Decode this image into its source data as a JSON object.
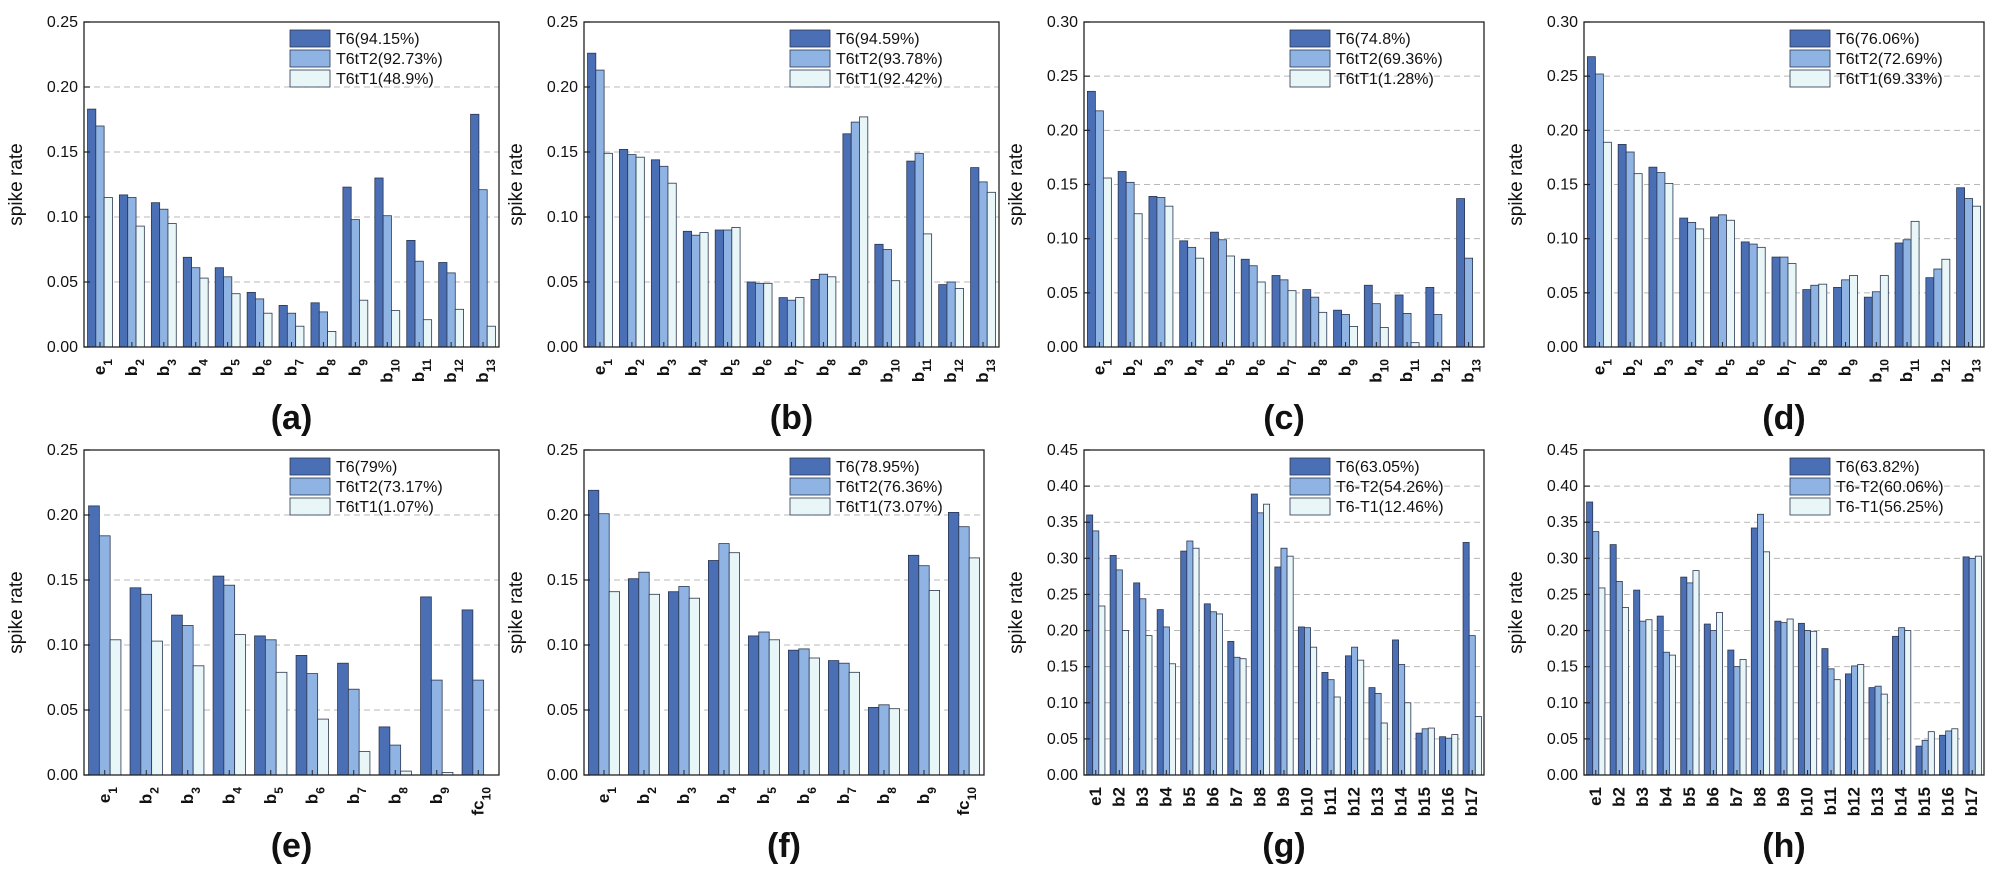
{
  "colors": {
    "T6": "#4a6fb5",
    "T2": "#8fb4e3",
    "T1": "#e8f6f7",
    "edge": "#2b3650",
    "grid": "#b8b8b8"
  },
  "chart_data": [
    {
      "type": "bar",
      "panel_label": "(a)",
      "ylabel": "spike rate",
      "ylim": [
        0,
        0.25
      ],
      "yticks": [
        0.0,
        0.05,
        0.1,
        0.15,
        0.2,
        0.25
      ],
      "categories": [
        {
          "base": "e",
          "sub": "1"
        },
        {
          "base": "b",
          "sub": "2"
        },
        {
          "base": "b",
          "sub": "3"
        },
        {
          "base": "b",
          "sub": "4"
        },
        {
          "base": "b",
          "sub": "5"
        },
        {
          "base": "b",
          "sub": "6"
        },
        {
          "base": "b",
          "sub": "7"
        },
        {
          "base": "b",
          "sub": "8"
        },
        {
          "base": "b",
          "sub": "9"
        },
        {
          "base": "b",
          "sub": "10"
        },
        {
          "base": "b",
          "sub": "11"
        },
        {
          "base": "b",
          "sub": "12"
        },
        {
          "base": "b",
          "sub": "13"
        }
      ],
      "series": [
        {
          "name": "T6(94.15%)",
          "color_key": "T6",
          "values": [
            0.183,
            0.117,
            0.111,
            0.069,
            0.061,
            0.042,
            0.032,
            0.034,
            0.123,
            0.13,
            0.082,
            0.065,
            0.179
          ]
        },
        {
          "name": "T6tT2(92.73%)",
          "color_key": "T2",
          "values": [
            0.17,
            0.115,
            0.106,
            0.061,
            0.054,
            0.037,
            0.026,
            0.027,
            0.098,
            0.101,
            0.066,
            0.057,
            0.121
          ]
        },
        {
          "name": "T6tT1(48.9%)",
          "color_key": "T1",
          "values": [
            0.115,
            0.093,
            0.095,
            0.053,
            0.041,
            0.026,
            0.016,
            0.012,
            0.036,
            0.028,
            0.021,
            0.029,
            0.016
          ]
        }
      ]
    },
    {
      "type": "bar",
      "panel_label": "(b)",
      "ylabel": "spike rate",
      "ylim": [
        0,
        0.25
      ],
      "yticks": [
        0.0,
        0.05,
        0.1,
        0.15,
        0.2,
        0.25
      ],
      "categories": [
        {
          "base": "e",
          "sub": "1"
        },
        {
          "base": "b",
          "sub": "2"
        },
        {
          "base": "b",
          "sub": "3"
        },
        {
          "base": "b",
          "sub": "4"
        },
        {
          "base": "b",
          "sub": "5"
        },
        {
          "base": "b",
          "sub": "6"
        },
        {
          "base": "b",
          "sub": "7"
        },
        {
          "base": "b",
          "sub": "8"
        },
        {
          "base": "b",
          "sub": "9"
        },
        {
          "base": "b",
          "sub": "10"
        },
        {
          "base": "b",
          "sub": "11"
        },
        {
          "base": "b",
          "sub": "12"
        },
        {
          "base": "b",
          "sub": "13"
        }
      ],
      "series": [
        {
          "name": "T6(94.59%)",
          "color_key": "T6",
          "values": [
            0.226,
            0.152,
            0.144,
            0.089,
            0.09,
            0.05,
            0.038,
            0.052,
            0.164,
            0.079,
            0.143,
            0.048,
            0.138
          ]
        },
        {
          "name": "T6tT2(93.78%)",
          "color_key": "T2",
          "values": [
            0.213,
            0.148,
            0.139,
            0.086,
            0.09,
            0.049,
            0.036,
            0.056,
            0.173,
            0.075,
            0.149,
            0.05,
            0.127
          ]
        },
        {
          "name": "T6tT1(92.42%)",
          "color_key": "T1",
          "values": [
            0.149,
            0.146,
            0.126,
            0.088,
            0.092,
            0.049,
            0.038,
            0.054,
            0.177,
            0.051,
            0.087,
            0.045,
            0.119
          ]
        }
      ]
    },
    {
      "type": "bar",
      "panel_label": "(c)",
      "ylabel": "spike rate",
      "ylim": [
        0,
        0.3
      ],
      "yticks": [
        0.0,
        0.05,
        0.1,
        0.15,
        0.2,
        0.25,
        0.3
      ],
      "categories": [
        {
          "base": "e",
          "sub": "1"
        },
        {
          "base": "b",
          "sub": "2"
        },
        {
          "base": "b",
          "sub": "3"
        },
        {
          "base": "b",
          "sub": "4"
        },
        {
          "base": "b",
          "sub": "5"
        },
        {
          "base": "b",
          "sub": "6"
        },
        {
          "base": "b",
          "sub": "7"
        },
        {
          "base": "b",
          "sub": "8"
        },
        {
          "base": "b",
          "sub": "9"
        },
        {
          "base": "b",
          "sub": "10"
        },
        {
          "base": "b",
          "sub": "11"
        },
        {
          "base": "b",
          "sub": "12"
        },
        {
          "base": "b",
          "sub": "13"
        }
      ],
      "series": [
        {
          "name": "T6(74.8%)",
          "color_key": "T6",
          "values": [
            0.236,
            0.162,
            0.139,
            0.098,
            0.106,
            0.081,
            0.066,
            0.053,
            0.034,
            0.057,
            0.048,
            0.055,
            0.137
          ]
        },
        {
          "name": "T6tT2(69.36%)",
          "color_key": "T2",
          "values": [
            0.218,
            0.152,
            0.138,
            0.092,
            0.099,
            0.075,
            0.062,
            0.046,
            0.03,
            0.04,
            0.031,
            0.03,
            0.082
          ]
        },
        {
          "name": "T6tT1(1.28%)",
          "color_key": "T1",
          "values": [
            0.156,
            0.123,
            0.13,
            0.082,
            0.084,
            0.06,
            0.052,
            0.032,
            0.019,
            0.018,
            0.004,
            0.0,
            0.0
          ]
        }
      ]
    },
    {
      "type": "bar",
      "panel_label": "(d)",
      "ylabel": "spike rate",
      "ylim": [
        0,
        0.3
      ],
      "yticks": [
        0.0,
        0.05,
        0.1,
        0.15,
        0.2,
        0.25,
        0.3
      ],
      "categories": [
        {
          "base": "e",
          "sub": "1"
        },
        {
          "base": "b",
          "sub": "2"
        },
        {
          "base": "b",
          "sub": "3"
        },
        {
          "base": "b",
          "sub": "4"
        },
        {
          "base": "b",
          "sub": "5"
        },
        {
          "base": "b",
          "sub": "6"
        },
        {
          "base": "b",
          "sub": "7"
        },
        {
          "base": "b",
          "sub": "8"
        },
        {
          "base": "b",
          "sub": "9"
        },
        {
          "base": "b",
          "sub": "10"
        },
        {
          "base": "b",
          "sub": "11"
        },
        {
          "base": "b",
          "sub": "12"
        },
        {
          "base": "b",
          "sub": "13"
        }
      ],
      "series": [
        {
          "name": "T6(76.06%)",
          "color_key": "T6",
          "values": [
            0.268,
            0.187,
            0.166,
            0.119,
            0.12,
            0.097,
            0.083,
            0.053,
            0.055,
            0.046,
            0.096,
            0.064,
            0.147
          ]
        },
        {
          "name": "T6tT2(72.69%)",
          "color_key": "T2",
          "values": [
            0.252,
            0.18,
            0.161,
            0.115,
            0.122,
            0.095,
            0.083,
            0.057,
            0.062,
            0.051,
            0.099,
            0.072,
            0.137
          ]
        },
        {
          "name": "T6tT1(69.33%)",
          "color_key": "T1",
          "values": [
            0.189,
            0.16,
            0.151,
            0.109,
            0.117,
            0.092,
            0.077,
            0.058,
            0.066,
            0.066,
            0.116,
            0.081,
            0.13
          ]
        }
      ]
    },
    {
      "type": "bar",
      "panel_label": "(e)",
      "ylabel": "spike rate",
      "ylim": [
        0,
        0.25
      ],
      "yticks": [
        0.0,
        0.05,
        0.1,
        0.15,
        0.2,
        0.25
      ],
      "categories": [
        {
          "base": "e",
          "sub": "1"
        },
        {
          "base": "b",
          "sub": "2"
        },
        {
          "base": "b",
          "sub": "3"
        },
        {
          "base": "b",
          "sub": "4"
        },
        {
          "base": "b",
          "sub": "5"
        },
        {
          "base": "b",
          "sub": "6"
        },
        {
          "base": "b",
          "sub": "7"
        },
        {
          "base": "b",
          "sub": "8"
        },
        {
          "base": "b",
          "sub": "9"
        },
        {
          "base": "fc",
          "sub": "10"
        }
      ],
      "series": [
        {
          "name": "T6(79%)",
          "color_key": "T6",
          "values": [
            0.207,
            0.144,
            0.123,
            0.153,
            0.107,
            0.092,
            0.086,
            0.037,
            0.137,
            0.127
          ]
        },
        {
          "name": "T6tT2(73.17%)",
          "color_key": "T2",
          "values": [
            0.184,
            0.139,
            0.115,
            0.146,
            0.104,
            0.078,
            0.066,
            0.023,
            0.073,
            0.073
          ]
        },
        {
          "name": "T6tT1(1.07%)",
          "color_key": "T1",
          "values": [
            0.104,
            0.103,
            0.084,
            0.108,
            0.079,
            0.043,
            0.018,
            0.003,
            0.002,
            0.0
          ]
        }
      ]
    },
    {
      "type": "bar",
      "panel_label": "(f)",
      "ylabel": "spike rate",
      "ylim": [
        0,
        0.25
      ],
      "yticks": [
        0.0,
        0.05,
        0.1,
        0.15,
        0.2,
        0.25
      ],
      "categories": [
        {
          "base": "e",
          "sub": "1"
        },
        {
          "base": "b",
          "sub": "2"
        },
        {
          "base": "b",
          "sub": "3"
        },
        {
          "base": "b",
          "sub": "4"
        },
        {
          "base": "b",
          "sub": "5"
        },
        {
          "base": "b",
          "sub": "6"
        },
        {
          "base": "b",
          "sub": "7"
        },
        {
          "base": "b",
          "sub": "8"
        },
        {
          "base": "b",
          "sub": "9"
        },
        {
          "base": "fc",
          "sub": "10"
        }
      ],
      "series": [
        {
          "name": "T6(78.95%)",
          "color_key": "T6",
          "values": [
            0.219,
            0.151,
            0.141,
            0.165,
            0.107,
            0.096,
            0.088,
            0.052,
            0.169,
            0.202
          ]
        },
        {
          "name": "T6tT2(76.36%)",
          "color_key": "T2",
          "values": [
            0.201,
            0.156,
            0.145,
            0.178,
            0.11,
            0.097,
            0.086,
            0.054,
            0.161,
            0.191
          ]
        },
        {
          "name": "T6tT1(73.07%)",
          "color_key": "T1",
          "values": [
            0.141,
            0.139,
            0.136,
            0.171,
            0.104,
            0.09,
            0.079,
            0.051,
            0.142,
            0.167
          ]
        }
      ]
    },
    {
      "type": "bar",
      "panel_label": "(g)",
      "ylabel": "spike rate",
      "ylim": [
        0,
        0.45
      ],
      "yticks": [
        0.0,
        0.05,
        0.1,
        0.15,
        0.2,
        0.25,
        0.3,
        0.35,
        0.4,
        0.45
      ],
      "categories": [
        {
          "base": "e1",
          "sub": ""
        },
        {
          "base": "b2",
          "sub": ""
        },
        {
          "base": "b3",
          "sub": ""
        },
        {
          "base": "b4",
          "sub": ""
        },
        {
          "base": "b5",
          "sub": ""
        },
        {
          "base": "b6",
          "sub": ""
        },
        {
          "base": "b7",
          "sub": ""
        },
        {
          "base": "b8",
          "sub": ""
        },
        {
          "base": "b9",
          "sub": ""
        },
        {
          "base": "b10",
          "sub": ""
        },
        {
          "base": "b11",
          "sub": ""
        },
        {
          "base": "b12",
          "sub": ""
        },
        {
          "base": "b13",
          "sub": ""
        },
        {
          "base": "b14",
          "sub": ""
        },
        {
          "base": "b15",
          "sub": ""
        },
        {
          "base": "b16",
          "sub": ""
        },
        {
          "base": "b17",
          "sub": ""
        }
      ],
      "series": [
        {
          "name": "T6(63.05%)",
          "color_key": "T6",
          "values": [
            0.36,
            0.304,
            0.266,
            0.229,
            0.31,
            0.237,
            0.185,
            0.389,
            0.288,
            0.205,
            0.142,
            0.165,
            0.121,
            0.187,
            0.058,
            0.053,
            0.322
          ]
        },
        {
          "name": "T6-T2(54.26%)",
          "color_key": "T2",
          "values": [
            0.338,
            0.284,
            0.244,
            0.205,
            0.324,
            0.226,
            0.163,
            0.363,
            0.314,
            0.204,
            0.132,
            0.177,
            0.113,
            0.153,
            0.064,
            0.051,
            0.193
          ]
        },
        {
          "name": "T6-T1(12.46%)",
          "color_key": "T1",
          "values": [
            0.234,
            0.2,
            0.193,
            0.154,
            0.314,
            0.223,
            0.161,
            0.375,
            0.303,
            0.177,
            0.108,
            0.159,
            0.072,
            0.1,
            0.065,
            0.056,
            0.081
          ]
        }
      ]
    },
    {
      "type": "bar",
      "panel_label": "(h)",
      "ylabel": "spike rate",
      "ylim": [
        0,
        0.45
      ],
      "yticks": [
        0.0,
        0.05,
        0.1,
        0.15,
        0.2,
        0.25,
        0.3,
        0.35,
        0.4,
        0.45
      ],
      "categories": [
        {
          "base": "e1",
          "sub": ""
        },
        {
          "base": "b2",
          "sub": ""
        },
        {
          "base": "b3",
          "sub": ""
        },
        {
          "base": "b4",
          "sub": ""
        },
        {
          "base": "b5",
          "sub": ""
        },
        {
          "base": "b6",
          "sub": ""
        },
        {
          "base": "b7",
          "sub": ""
        },
        {
          "base": "b8",
          "sub": ""
        },
        {
          "base": "b9",
          "sub": ""
        },
        {
          "base": "b10",
          "sub": ""
        },
        {
          "base": "b11",
          "sub": ""
        },
        {
          "base": "b12",
          "sub": ""
        },
        {
          "base": "b13",
          "sub": ""
        },
        {
          "base": "b14",
          "sub": ""
        },
        {
          "base": "b15",
          "sub": ""
        },
        {
          "base": "b16",
          "sub": ""
        },
        {
          "base": "b17",
          "sub": ""
        }
      ],
      "series": [
        {
          "name": "T6(63.82%)",
          "color_key": "T6",
          "values": [
            0.378,
            0.319,
            0.256,
            0.22,
            0.274,
            0.209,
            0.173,
            0.342,
            0.213,
            0.21,
            0.175,
            0.14,
            0.121,
            0.192,
            0.04,
            0.055,
            0.302
          ]
        },
        {
          "name": "T6-T2(60.06%)",
          "color_key": "T2",
          "values": [
            0.337,
            0.268,
            0.213,
            0.17,
            0.266,
            0.2,
            0.15,
            0.361,
            0.211,
            0.2,
            0.147,
            0.151,
            0.123,
            0.204,
            0.048,
            0.061,
            0.3
          ]
        },
        {
          "name": "T6-T1(56.25%)",
          "color_key": "T1",
          "values": [
            0.259,
            0.232,
            0.215,
            0.166,
            0.283,
            0.225,
            0.16,
            0.309,
            0.216,
            0.199,
            0.132,
            0.153,
            0.112,
            0.2,
            0.06,
            0.064,
            0.303
          ]
        }
      ]
    }
  ]
}
